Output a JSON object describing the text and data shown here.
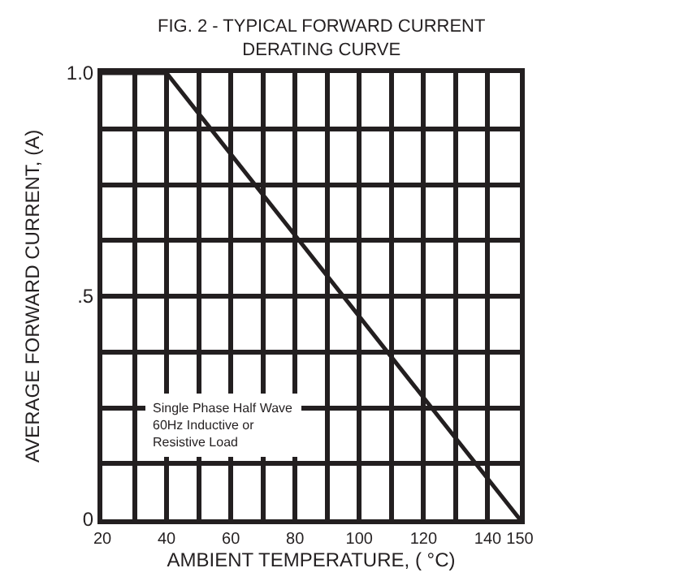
{
  "chart_data": {
    "type": "line",
    "title": "FIG. 2 - TYPICAL FORWARD CURRENT\nDERATING CURVE",
    "xlabel": "AMBIENT TEMPERATURE, ( °C)",
    "ylabel": "AVERAGE FORWARD CURRENT, (A)",
    "x": [
      20,
      40,
      150
    ],
    "series": [
      {
        "color": "#231f20",
        "values": [
          1.0,
          1.0,
          0
        ]
      }
    ],
    "xlim": [
      20,
      150
    ],
    "xticks": [
      20,
      {
        "value": 30,
        "label": null
      },
      40,
      {
        "value": 50,
        "label": null
      },
      60,
      {
        "value": 70,
        "label": null
      },
      80,
      {
        "value": 90,
        "label": null
      },
      100,
      {
        "value": 110,
        "label": null
      },
      120,
      {
        "value": 130,
        "label": null
      },
      140,
      150
    ],
    "ylim": [
      0,
      1.0
    ],
    "yticks": [
      0,
      {
        "value": 0.125,
        "label": null
      },
      {
        "value": 0.25,
        "label": null
      },
      {
        "value": 0.375,
        "label": null
      },
      {
        "value": 0.5,
        "label": ".5"
      },
      {
        "value": 0.625,
        "label": null
      },
      {
        "value": 0.75,
        "label": null
      },
      {
        "value": 0.875,
        "label": null
      },
      {
        "value": 1.0,
        "label": "1.0"
      }
    ],
    "grid": true,
    "marker": "none",
    "line_style": "solid",
    "annotations": [
      "Single Phase Half Wave\n60Hz Inductive or\nResistive Load"
    ]
  }
}
